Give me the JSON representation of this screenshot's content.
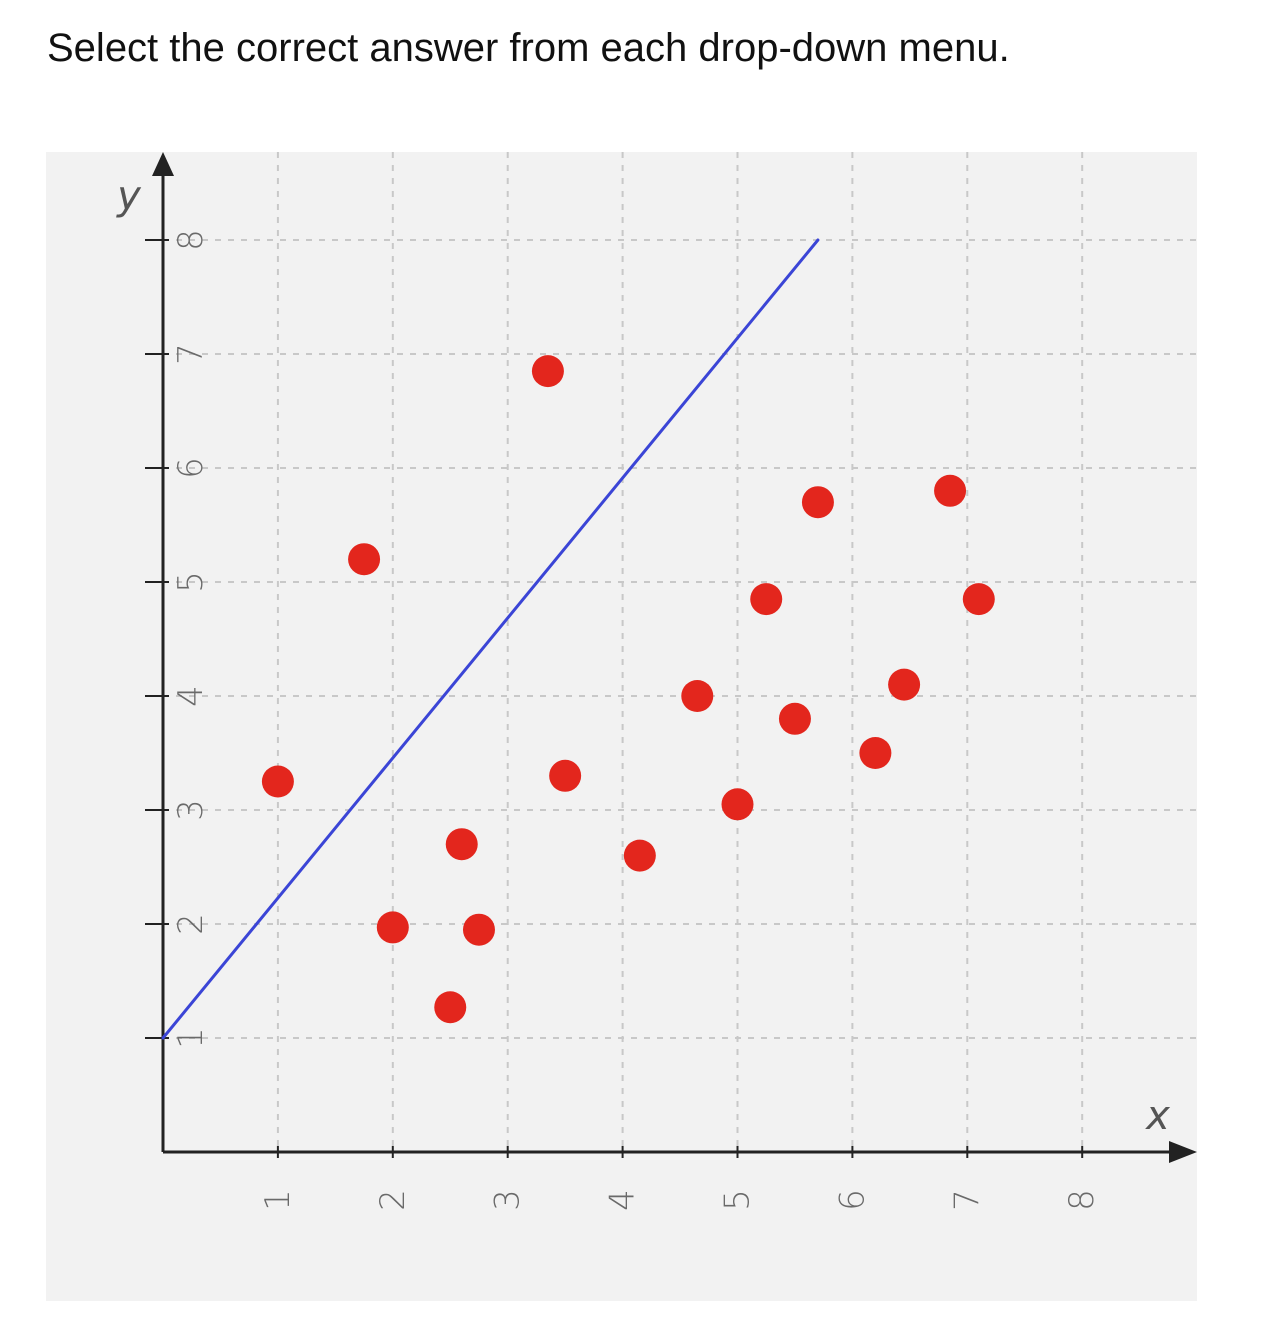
{
  "instruction": "Select the correct answer from each drop-down menu.",
  "colors": {
    "panel_background": "#f2f2f2",
    "grid": "#c8c8c8",
    "axis": "#222222",
    "line": "#3b45d6",
    "points": "#e3261d"
  },
  "chart_data": {
    "type": "scatter",
    "title": "",
    "xlabel": "x",
    "ylabel": "y",
    "xlim": [
      0,
      8.8
    ],
    "ylim": [
      0,
      8.6
    ],
    "x_ticks": [
      1,
      2,
      3,
      4,
      5,
      6,
      7,
      8
    ],
    "y_ticks": [
      1,
      2,
      3,
      4,
      5,
      6,
      7,
      8
    ],
    "grid": true,
    "points": [
      {
        "x": 1.0,
        "y": 3.25
      },
      {
        "x": 1.75,
        "y": 5.2
      },
      {
        "x": 2.0,
        "y": 1.97
      },
      {
        "x": 2.5,
        "y": 1.27
      },
      {
        "x": 2.6,
        "y": 2.7
      },
      {
        "x": 2.75,
        "y": 1.95
      },
      {
        "x": 3.35,
        "y": 6.85
      },
      {
        "x": 3.5,
        "y": 3.3
      },
      {
        "x": 4.15,
        "y": 2.6
      },
      {
        "x": 4.65,
        "y": 4.0
      },
      {
        "x": 5.0,
        "y": 3.05
      },
      {
        "x": 5.25,
        "y": 4.85
      },
      {
        "x": 5.5,
        "y": 3.8
      },
      {
        "x": 5.7,
        "y": 5.7
      },
      {
        "x": 6.2,
        "y": 3.5
      },
      {
        "x": 6.45,
        "y": 4.1
      },
      {
        "x": 6.85,
        "y": 5.8
      },
      {
        "x": 7.1,
        "y": 4.85
      }
    ],
    "line": {
      "from": {
        "x": 0,
        "y": 1.0
      },
      "to": {
        "x": 5.7,
        "y": 8.0
      }
    }
  }
}
